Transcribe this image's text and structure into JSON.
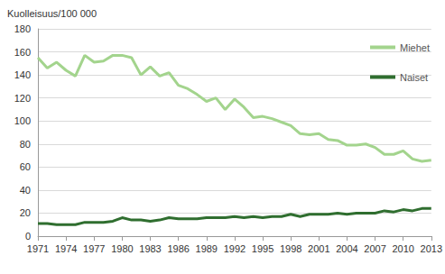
{
  "chart_data": {
    "type": "line",
    "y_label": "Kuolleisuus/100 000",
    "x": [
      1971,
      1972,
      1973,
      1974,
      1975,
      1976,
      1977,
      1978,
      1979,
      1980,
      1981,
      1982,
      1983,
      1984,
      1985,
      1986,
      1987,
      1988,
      1989,
      1990,
      1991,
      1992,
      1993,
      1994,
      1995,
      1996,
      1997,
      1998,
      1999,
      2000,
      2001,
      2002,
      2003,
      2004,
      2005,
      2006,
      2007,
      2008,
      2009,
      2010,
      2011,
      2012,
      2013
    ],
    "series": [
      {
        "name": "Miehet",
        "color": "#a3d48d",
        "values": [
          155,
          146,
          151,
          144,
          139,
          157,
          151,
          152,
          157,
          157,
          155,
          140,
          147,
          139,
          142,
          131,
          128,
          123,
          117,
          120,
          110,
          119,
          112,
          103,
          104,
          102,
          99,
          96,
          89,
          88,
          89,
          84,
          83,
          79,
          79,
          80,
          77,
          71,
          71,
          74,
          67,
          65,
          66
        ]
      },
      {
        "name": "Naiset",
        "color": "#2f6e2f",
        "values": [
          11,
          11,
          10,
          10,
          10,
          12,
          12,
          12,
          13,
          16,
          14,
          14,
          13,
          14,
          16,
          15,
          15,
          15,
          16,
          16,
          16,
          17,
          16,
          17,
          16,
          17,
          17,
          19,
          17,
          19,
          19,
          19,
          20,
          19,
          20,
          20,
          20,
          22,
          21,
          23,
          22,
          24,
          24
        ]
      }
    ],
    "xlim": [
      1971,
      2013
    ],
    "xticks": [
      1971,
      1974,
      1977,
      1980,
      1983,
      1986,
      1989,
      1992,
      1995,
      1998,
      2001,
      2004,
      2007,
      2010,
      2013
    ],
    "ylim": [
      0,
      180
    ],
    "yticks": [
      0,
      20,
      40,
      60,
      80,
      100,
      120,
      140,
      160,
      180
    ],
    "grid": true,
    "legend": "top-right"
  }
}
